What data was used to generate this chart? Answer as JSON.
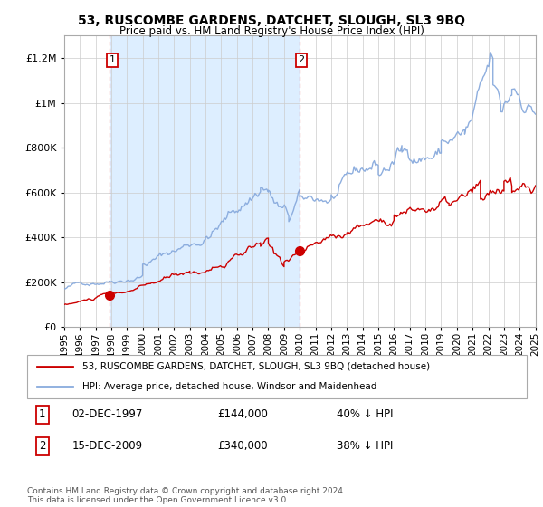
{
  "title_line1": "53, RUSCOMBE GARDENS, DATCHET, SLOUGH, SL3 9BQ",
  "title_line2": "Price paid vs. HM Land Registry's House Price Index (HPI)",
  "ylim": [
    0,
    1300000
  ],
  "yticks": [
    0,
    200000,
    400000,
    600000,
    800000,
    1000000,
    1200000
  ],
  "ytick_labels": [
    "£0",
    "£200K",
    "£400K",
    "£600K",
    "£800K",
    "£1M",
    "£1.2M"
  ],
  "x_start_year": 1995,
  "x_end_year": 2025,
  "sale1_year": 1997.92,
  "sale1_price": 144000,
  "sale2_year": 2009.96,
  "sale2_price": 340000,
  "red_color": "#cc0000",
  "blue_color": "#88aadd",
  "highlight_color": "#ddeeff",
  "legend_label1": "53, RUSCOMBE GARDENS, DATCHET, SLOUGH, SL3 9BQ (detached house)",
  "legend_label2": "HPI: Average price, detached house, Windsor and Maidenhead",
  "note1_date": "02-DEC-1997",
  "note1_price": "£144,000",
  "note1_hpi": "40% ↓ HPI",
  "note2_date": "15-DEC-2009",
  "note2_price": "£340,000",
  "note2_hpi": "38% ↓ HPI",
  "footer": "Contains HM Land Registry data © Crown copyright and database right 2024.\nThis data is licensed under the Open Government Licence v3.0.",
  "background_color": "#ffffff",
  "grid_color": "#cccccc"
}
